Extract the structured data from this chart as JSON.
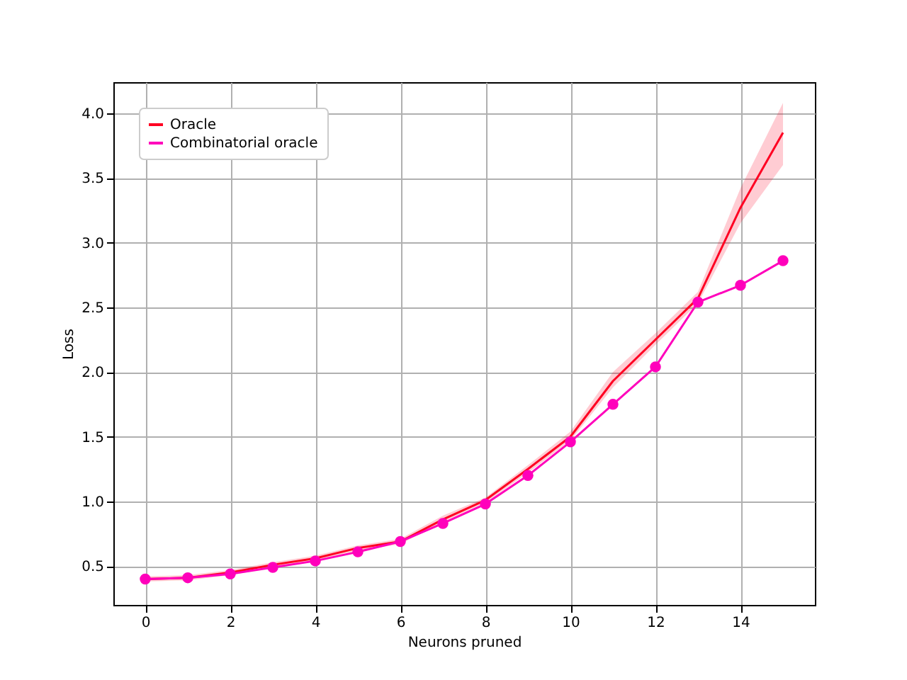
{
  "chart_data": {
    "type": "line",
    "xlabel": "Neurons pruned",
    "ylabel": "Loss",
    "x": [
      0,
      1,
      2,
      3,
      4,
      5,
      6,
      7,
      8,
      9,
      10,
      11,
      12,
      13,
      14,
      15
    ],
    "series": [
      {
        "name": "Oracle",
        "color": "#ff0022",
        "marker": "none",
        "values": [
          0.4,
          0.41,
          0.45,
          0.51,
          0.56,
          0.64,
          0.69,
          0.86,
          1.01,
          1.25,
          1.5,
          1.93,
          2.25,
          2.57,
          3.27,
          3.85
        ],
        "lower": [
          0.38,
          0.39,
          0.43,
          0.49,
          0.54,
          0.62,
          0.67,
          0.84,
          0.99,
          1.22,
          1.47,
          1.88,
          2.21,
          2.53,
          3.15,
          3.6
        ],
        "upper": [
          0.42,
          0.43,
          0.47,
          0.53,
          0.58,
          0.66,
          0.71,
          0.89,
          1.03,
          1.28,
          1.54,
          2.0,
          2.3,
          2.62,
          3.42,
          4.08
        ]
      },
      {
        "name": "Combinatorial oracle",
        "color": "#ff00bb",
        "marker": "circle",
        "values": [
          0.4,
          0.41,
          0.44,
          0.49,
          0.54,
          0.61,
          0.69,
          0.83,
          0.98,
          1.2,
          1.46,
          1.75,
          2.04,
          2.54,
          2.67,
          2.86
        ]
      }
    ],
    "xlim": [
      -0.75,
      15.75
    ],
    "xticks": [
      0,
      2,
      4,
      6,
      8,
      10,
      12,
      14
    ],
    "ylim": [
      0.2,
      4.24
    ],
    "yticks": [
      0.5,
      {
        "value": 1,
        "label": "1.0"
      },
      1.5,
      {
        "value": 2,
        "label": "2.0"
      },
      2.5,
      {
        "value": 3,
        "label": "3.0"
      },
      3.5,
      {
        "value": 4,
        "label": "4.0"
      }
    ],
    "grid": true,
    "legend": "top left",
    "line_style": "solid"
  }
}
